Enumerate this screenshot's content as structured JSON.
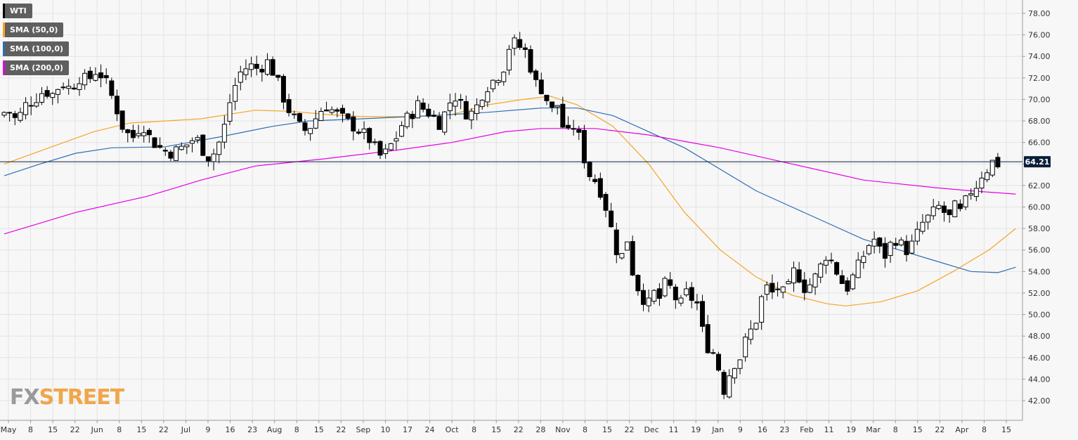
{
  "legend": [
    {
      "label": "WTI",
      "color": "#000000"
    },
    {
      "label": "SMA (50,0)",
      "color": "#f5a623"
    },
    {
      "label": "SMA (100,0)",
      "color": "#2f6db5"
    },
    {
      "label": "SMA (200,0)",
      "color": "#e600e6"
    }
  ],
  "watermark": {
    "fx": "FX",
    "street": "STREET"
  },
  "chart_data": {
    "type": "candlestick",
    "title": "",
    "xlabel": "",
    "ylabel": "",
    "ylim": [
      40.5,
      79
    ],
    "y_ticks": [
      "78.00",
      "76.00",
      "74.00",
      "72.00",
      "70.00",
      "68.00",
      "66.00",
      "64.00",
      "62.00",
      "60.00",
      "58.00",
      "56.00",
      "54.00",
      "52.00",
      "50.00",
      "48.00",
      "46.00",
      "44.00",
      "42.00"
    ],
    "x_ticks": [
      "May",
      "8",
      "15",
      "22",
      "Jun",
      "8",
      "15",
      "22",
      "Jul",
      "9",
      "16",
      "23",
      "Aug",
      "8",
      "15",
      "22",
      "Sep",
      "10",
      "17",
      "24",
      "Oct",
      "8",
      "15",
      "22",
      "28",
      "Nov",
      "8",
      "15",
      "22",
      "Dec",
      "11",
      "19",
      "Jan",
      "9",
      "16",
      "23",
      "Feb",
      "11",
      "19",
      "Mar",
      "8",
      "15",
      "22",
      "Apr",
      "8",
      "15"
    ],
    "current_price": {
      "label": "64.21",
      "value": 64.21
    },
    "grid": true,
    "series": [
      {
        "name": "WTI",
        "type": "candlestick",
        "close_path": [
          [
            0,
            68.5
          ],
          [
            5,
            69.0
          ],
          [
            10,
            68.0
          ],
          [
            15,
            69.5
          ],
          [
            20,
            70.0
          ],
          [
            25,
            70.8
          ],
          [
            30,
            70.5
          ],
          [
            35,
            71.5
          ],
          [
            40,
            71.0
          ],
          [
            45,
            72.0
          ],
          [
            50,
            71.8
          ],
          [
            55,
            72.8
          ],
          [
            60,
            71.5
          ],
          [
            65,
            69.5
          ],
          [
            70,
            67.0
          ],
          [
            75,
            66.5
          ],
          [
            80,
            67.8
          ],
          [
            85,
            66.2
          ],
          [
            90,
            65.5
          ],
          [
            95,
            65.0
          ],
          [
            100,
            65.3
          ],
          [
            105,
            65.8
          ],
          [
            110,
            66.5
          ],
          [
            115,
            65.0
          ],
          [
            118,
            64.5
          ],
          [
            122,
            65.5
          ],
          [
            126,
            67.5
          ],
          [
            130,
            70.5
          ],
          [
            135,
            72.5
          ],
          [
            140,
            73.2
          ],
          [
            145,
            72.8
          ],
          [
            150,
            73.5
          ],
          [
            155,
            72.0
          ],
          [
            158,
            70.5
          ],
          [
            162,
            69.0
          ],
          [
            166,
            68.0
          ],
          [
            170,
            67.0
          ],
          [
            174,
            67.5
          ],
          [
            178,
            68.5
          ],
          [
            182,
            69.5
          ],
          [
            186,
            69.0
          ],
          [
            190,
            68.5
          ],
          [
            194,
            68.0
          ],
          [
            198,
            67.5
          ],
          [
            202,
            67.0
          ],
          [
            206,
            66.5
          ],
          [
            210,
            65.5
          ],
          [
            214,
            64.5
          ],
          [
            218,
            65.5
          ],
          [
            222,
            66.5
          ],
          [
            226,
            68.0
          ],
          [
            230,
            68.5
          ],
          [
            234,
            69.5
          ],
          [
            238,
            69.0
          ],
          [
            242,
            68.5
          ],
          [
            246,
            67.8
          ],
          [
            250,
            69.0
          ],
          [
            254,
            70.5
          ],
          [
            258,
            69.5
          ],
          [
            262,
            68.5
          ],
          [
            266,
            69.0
          ],
          [
            270,
            70.5
          ],
          [
            274,
            71.5
          ],
          [
            278,
            72.0
          ],
          [
            282,
            73.0
          ],
          [
            286,
            75.5
          ],
          [
            290,
            75.0
          ],
          [
            294,
            74.5
          ],
          [
            297,
            73.0
          ],
          [
            300,
            71.5
          ],
          [
            303,
            71.0
          ],
          [
            306,
            70.0
          ],
          [
            309,
            69.0
          ],
          [
            312,
            69.5
          ],
          [
            315,
            67.5
          ],
          [
            318,
            66.8
          ],
          [
            321,
            67.5
          ],
          [
            324,
            66.5
          ],
          [
            327,
            64.5
          ],
          [
            330,
            63.0
          ],
          [
            333,
            62.5
          ],
          [
            336,
            61.5
          ],
          [
            339,
            60.0
          ],
          [
            342,
            58.0
          ],
          [
            345,
            56.0
          ],
          [
            348,
            55.5
          ],
          [
            351,
            57.0
          ],
          [
            354,
            54.0
          ],
          [
            357,
            52.5
          ],
          [
            360,
            51.5
          ],
          [
            363,
            51.0
          ],
          [
            366,
            52.0
          ],
          [
            369,
            51.5
          ],
          [
            372,
            52.8
          ],
          [
            375,
            52.5
          ],
          [
            378,
            51.5
          ],
          [
            381,
            51.0
          ],
          [
            384,
            52.0
          ],
          [
            387,
            51.5
          ],
          [
            390,
            51.0
          ],
          [
            393,
            48.5
          ],
          [
            396,
            47.0
          ],
          [
            399,
            46.5
          ],
          [
            402,
            45.0
          ],
          [
            405,
            43.0
          ],
          [
            408,
            44.5
          ],
          [
            411,
            45.5
          ],
          [
            414,
            46.0
          ],
          [
            417,
            47.5
          ],
          [
            420,
            48.5
          ],
          [
            423,
            49.5
          ],
          [
            426,
            51.5
          ],
          [
            429,
            52.5
          ],
          [
            432,
            52.0
          ],
          [
            435,
            52.5
          ],
          [
            438,
            52.0
          ],
          [
            441,
            52.5
          ],
          [
            444,
            54.0
          ],
          [
            447,
            53.5
          ],
          [
            450,
            52.5
          ],
          [
            453,
            52.8
          ],
          [
            456,
            53.5
          ],
          [
            459,
            54.5
          ],
          [
            462,
            55.5
          ],
          [
            465,
            55.0
          ],
          [
            468,
            54.0
          ],
          [
            471,
            53.0
          ],
          [
            474,
            52.5
          ],
          [
            477,
            53.5
          ],
          [
            480,
            54.5
          ],
          [
            483,
            55.5
          ],
          [
            486,
            56.5
          ],
          [
            489,
            57.0
          ],
          [
            492,
            56.0
          ],
          [
            495,
            55.5
          ],
          [
            498,
            56.5
          ],
          [
            501,
            57.0
          ],
          [
            504,
            56.5
          ],
          [
            507,
            56.0
          ],
          [
            510,
            56.5
          ],
          [
            513,
            57.5
          ],
          [
            516,
            58.5
          ],
          [
            519,
            59.0
          ],
          [
            522,
            59.5
          ],
          [
            525,
            60.0
          ],
          [
            528,
            59.5
          ],
          [
            531,
            59.0
          ],
          [
            534,
            60.0
          ],
          [
            537,
            59.5
          ],
          [
            540,
            60.5
          ],
          [
            543,
            61.5
          ],
          [
            546,
            62.0
          ],
          [
            549,
            63.0
          ],
          [
            552,
            63.5
          ],
          [
            555,
            64.2
          ],
          [
            557,
            64.0
          ]
        ]
      },
      {
        "name": "SMA (50,0)",
        "type": "line",
        "color": "#f5a623",
        "points": [
          [
            0,
            64.0
          ],
          [
            25,
            65.5
          ],
          [
            50,
            67.0
          ],
          [
            70,
            67.8
          ],
          [
            90,
            68.0
          ],
          [
            110,
            68.2
          ],
          [
            140,
            69.0
          ],
          [
            160,
            68.9
          ],
          [
            180,
            68.6
          ],
          [
            200,
            68.4
          ],
          [
            230,
            68.4
          ],
          [
            250,
            68.6
          ],
          [
            270,
            69.5
          ],
          [
            290,
            70.0
          ],
          [
            305,
            70.3
          ],
          [
            320,
            69.5
          ],
          [
            340,
            67.5
          ],
          [
            360,
            64.0
          ],
          [
            380,
            59.5
          ],
          [
            400,
            56.0
          ],
          [
            420,
            53.5
          ],
          [
            440,
            51.8
          ],
          [
            460,
            51.0
          ],
          [
            470,
            50.8
          ],
          [
            490,
            51.2
          ],
          [
            510,
            52.2
          ],
          [
            530,
            54.0
          ],
          [
            550,
            56.0
          ],
          [
            565,
            58.0
          ]
        ]
      },
      {
        "name": "SMA (100,0)",
        "type": "line",
        "color": "#2f6db5",
        "points": [
          [
            0,
            62.9
          ],
          [
            20,
            64.0
          ],
          [
            40,
            65.0
          ],
          [
            60,
            65.5
          ],
          [
            90,
            65.6
          ],
          [
            120,
            66.5
          ],
          [
            150,
            67.5
          ],
          [
            170,
            68.0
          ],
          [
            200,
            68.2
          ],
          [
            240,
            68.5
          ],
          [
            270,
            68.8
          ],
          [
            300,
            69.2
          ],
          [
            320,
            69.2
          ],
          [
            340,
            68.5
          ],
          [
            360,
            67.0
          ],
          [
            380,
            65.5
          ],
          [
            400,
            63.5
          ],
          [
            420,
            61.5
          ],
          [
            440,
            60.0
          ],
          [
            460,
            58.5
          ],
          [
            480,
            57.0
          ],
          [
            500,
            56.0
          ],
          [
            520,
            55.0
          ],
          [
            540,
            54.0
          ],
          [
            555,
            53.9
          ],
          [
            565,
            54.4
          ]
        ]
      },
      {
        "name": "SMA (200,0)",
        "type": "line",
        "color": "#e600e6",
        "points": [
          [
            0,
            57.5
          ],
          [
            40,
            59.5
          ],
          [
            80,
            61.0
          ],
          [
            110,
            62.5
          ],
          [
            140,
            63.8
          ],
          [
            180,
            64.5
          ],
          [
            220,
            65.3
          ],
          [
            250,
            66.0
          ],
          [
            280,
            67.0
          ],
          [
            300,
            67.3
          ],
          [
            330,
            67.3
          ],
          [
            360,
            66.7
          ],
          [
            400,
            65.5
          ],
          [
            440,
            64.0
          ],
          [
            480,
            62.5
          ],
          [
            520,
            61.8
          ],
          [
            540,
            61.5
          ],
          [
            565,
            61.2
          ]
        ]
      }
    ]
  }
}
